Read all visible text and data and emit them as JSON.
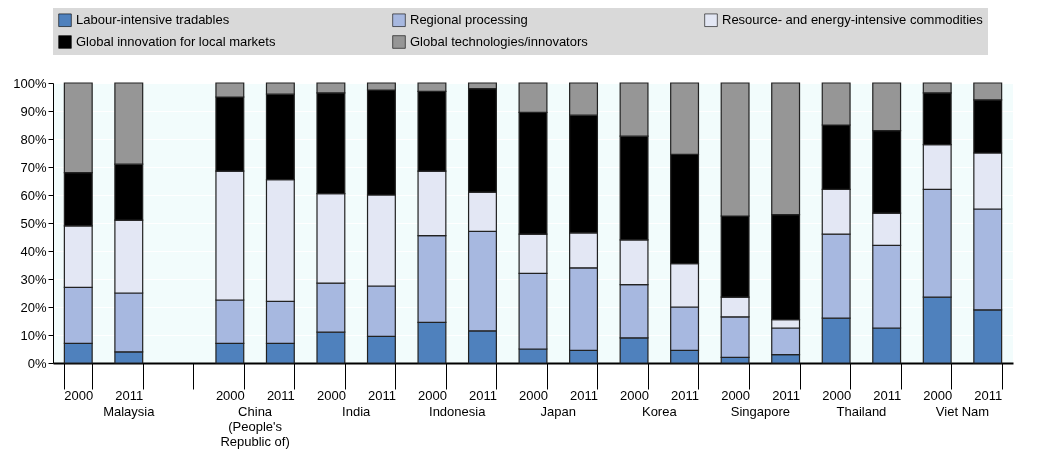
{
  "chart_data": {
    "type": "bar",
    "stacked": true,
    "categories": [
      "2000",
      "2011",
      null,
      "2000",
      "2011",
      "2000",
      "2011",
      "2000",
      "2011",
      "2000",
      "2011",
      "2000",
      "2011",
      "2000",
      "2011",
      "2000",
      "2011",
      "2000",
      "2011"
    ],
    "annotations": [
      "Malaysia",
      "China (People's Republic of)",
      "India",
      "Indonesia",
      "Japan",
      "Korea",
      "Singapore",
      "Thailand",
      "Viet Nam"
    ],
    "series": [
      {
        "name": "Labour-intensive tradables",
        "color": "#4f81bd",
        "values": [
          7,
          4,
          null,
          7,
          7,
          11,
          9.5,
          14.5,
          11.5,
          5,
          4.5,
          9,
          4.5,
          2,
          3,
          16,
          12.5,
          23.5,
          19
        ]
      },
      {
        "name": "Regional processing",
        "color": "#a7b8e0",
        "values": [
          20,
          21,
          null,
          15.5,
          15,
          17.5,
          18,
          31,
          35.5,
          27,
          29.5,
          19,
          15.5,
          14.5,
          9.5,
          30,
          29.5,
          38.5,
          36
        ]
      },
      {
        "name": "Resource- and energy-intensive commodities",
        "color": "#e3e7f4",
        "values": [
          22,
          26,
          null,
          46,
          43.5,
          32,
          32.5,
          23,
          14,
          14,
          12.5,
          16,
          15.5,
          7,
          3,
          16,
          11.5,
          16,
          20
        ]
      },
      {
        "name": "Global innovation for local markets",
        "color": "#000000",
        "values": [
          19,
          20,
          null,
          26.5,
          30.5,
          36,
          37.5,
          28.5,
          37,
          43.5,
          42,
          37,
          39,
          29,
          37.5,
          23,
          29.5,
          18.5,
          19
        ]
      },
      {
        "name": "Global technologies/innovators",
        "color": "#969696",
        "values": [
          32,
          29,
          null,
          5,
          4,
          3.5,
          2.5,
          3,
          2,
          10.5,
          11.5,
          19,
          25.5,
          47.5,
          47,
          15,
          17,
          3.5,
          6
        ]
      }
    ],
    "ylim": [
      0,
      100
    ],
    "yticks": [
      {
        "value": 0,
        "label": "0%"
      },
      {
        "value": 10,
        "label": "10%"
      },
      {
        "value": 20,
        "label": "20%"
      },
      {
        "value": 30,
        "label": "30%"
      },
      {
        "value": 40,
        "label": "40%"
      },
      {
        "value": 50,
        "label": "50%"
      },
      {
        "value": 60,
        "label": "60%"
      },
      {
        "value": 70,
        "label": "70%"
      },
      {
        "value": 80,
        "label": "80%"
      },
      {
        "value": 90,
        "label": "90%"
      },
      {
        "value": 100,
        "label": "100%"
      }
    ],
    "grid": "y",
    "legend": "top"
  }
}
